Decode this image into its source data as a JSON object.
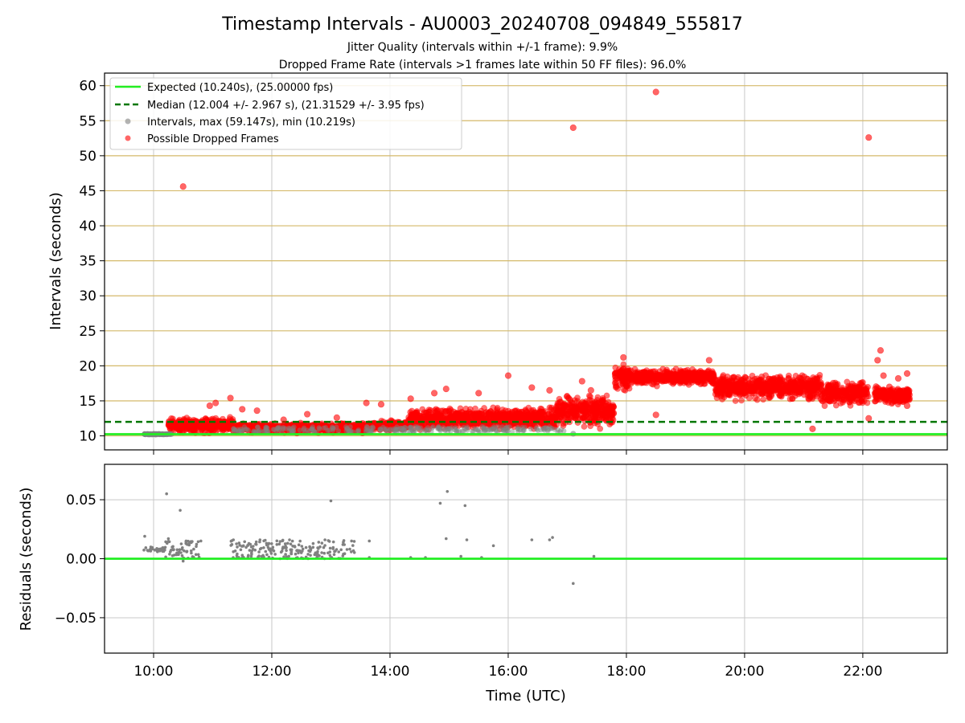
{
  "chart_data": [
    {
      "type": "scatter",
      "title": "Timestamp Intervals - AU0003_20240708_094849_555817",
      "subtitle_lines": [
        "Jitter Quality (intervals within +/-1 frame): 9.9%",
        "Dropped Frame Rate (intervals >1 frames late within 50 FF files): 96.0%"
      ],
      "xlabel": "",
      "ylabel": "Intervals (seconds)",
      "xlim_hours": [
        9.17,
        23.43
      ],
      "ylim": [
        8,
        61.8
      ],
      "yticks": [
        10,
        15,
        20,
        25,
        30,
        35,
        40,
        45,
        50,
        55,
        60
      ],
      "xticks": [
        "10:00",
        "12:00",
        "14:00",
        "16:00",
        "18:00",
        "20:00",
        "22:00"
      ],
      "grid": true,
      "legend_position": "upper-left",
      "colors": {
        "expected": "#22ee22",
        "median": "#007700",
        "intervals": "#808080",
        "dropped": "#ff0000",
        "hgrid": "#d4b96a",
        "vgrid": "#c8c8c8"
      },
      "series": [
        {
          "name": "Expected (10.240s), (25.00000 fps)",
          "kind": "hline",
          "y": 10.24
        },
        {
          "name": "Median (12.004 +/- 2.967 s), (21.31529 +/- 3.95 fps)",
          "kind": "hline",
          "y": 12.004
        },
        {
          "name": "Intervals, max (59.147s), min (10.219s)",
          "kind": "points",
          "points": [
            [
              9.85,
              10.25
            ],
            [
              9.9,
              10.25
            ],
            [
              9.95,
              10.26
            ],
            [
              10.0,
              10.25
            ],
            [
              10.05,
              10.24
            ],
            [
              10.1,
              10.25
            ],
            [
              10.15,
              10.26
            ],
            [
              10.2,
              10.24
            ],
            [
              10.3,
              10.25
            ],
            [
              13.6,
              10.6
            ],
            [
              14.1,
              10.5
            ],
            [
              14.6,
              10.8
            ],
            [
              15.1,
              10.9
            ],
            [
              15.6,
              10.8
            ],
            [
              16.2,
              10.9
            ],
            [
              16.6,
              11.0
            ],
            [
              17.1,
              10.3
            ]
          ]
        },
        {
          "name": "Possible Dropped Frames",
          "kind": "points",
          "points": [
            [
              10.5,
              45.6
            ],
            [
              17.1,
              54.0
            ],
            [
              18.5,
              59.1
            ],
            [
              22.1,
              52.6
            ],
            [
              10.95,
              14.3
            ],
            [
              11.05,
              14.7
            ],
            [
              11.3,
              15.4
            ],
            [
              11.5,
              13.8
            ],
            [
              11.75,
              13.6
            ],
            [
              12.2,
              12.3
            ],
            [
              12.6,
              13.1
            ],
            [
              13.1,
              12.6
            ],
            [
              13.6,
              14.7
            ],
            [
              13.85,
              14.5
            ],
            [
              14.35,
              15.3
            ],
            [
              14.75,
              16.1
            ],
            [
              14.95,
              16.7
            ],
            [
              15.5,
              16.1
            ],
            [
              16.0,
              18.6
            ],
            [
              16.4,
              16.9
            ],
            [
              16.7,
              16.5
            ],
            [
              17.25,
              17.8
            ],
            [
              17.4,
              16.5
            ],
            [
              17.6,
              14.9
            ],
            [
              17.95,
              21.2
            ],
            [
              18.5,
              13.0
            ],
            [
              19.4,
              20.8
            ],
            [
              21.15,
              11.0
            ],
            [
              22.1,
              12.5
            ],
            [
              22.25,
              20.8
            ],
            [
              22.3,
              22.2
            ],
            [
              22.35,
              18.6
            ],
            [
              22.6,
              18.2
            ],
            [
              22.7,
              15.5
            ],
            [
              22.75,
              14.3
            ],
            [
              22.75,
              18.9
            ],
            [
              22.45,
              17.0
            ]
          ]
        }
      ],
      "dense_bands": [
        {
          "x": [
            10.25,
            11.35
          ],
          "y": [
            10.2,
            12.9
          ]
        },
        {
          "x": [
            11.35,
            13.6
          ],
          "y": [
            10.3,
            12.0
          ]
        },
        {
          "x": [
            13.6,
            14.3
          ],
          "y": [
            10.6,
            12.3
          ]
        },
        {
          "x": [
            14.3,
            16.8
          ],
          "y": [
            10.6,
            14.3
          ]
        },
        {
          "x": [
            16.8,
            17.8
          ],
          "y": [
            10.6,
            16.5
          ]
        },
        {
          "x": [
            17.8,
            18.1
          ],
          "y": [
            16.0,
            20.8
          ]
        },
        {
          "x": [
            18.1,
            19.5
          ],
          "y": [
            17.0,
            19.8
          ]
        },
        {
          "x": [
            19.5,
            21.3
          ],
          "y": [
            14.8,
            19.0
          ]
        },
        {
          "x": [
            21.3,
            22.1
          ],
          "y": [
            14.0,
            18.3
          ]
        },
        {
          "x": [
            22.2,
            22.8
          ],
          "y": [
            14.0,
            17.5
          ]
        }
      ]
    },
    {
      "type": "scatter",
      "xlabel": "Time (UTC)",
      "ylabel": "Residuals (seconds)",
      "xlim_hours": [
        9.17,
        23.43
      ],
      "ylim": [
        -0.08,
        0.08
      ],
      "yticks": [
        0.05,
        0.0,
        -0.05
      ],
      "ytick_labels": [
        "0.05",
        "0.00",
        "−0.05"
      ],
      "xticks": [
        "10:00",
        "12:00",
        "14:00",
        "16:00",
        "18:00",
        "20:00",
        "22:00"
      ],
      "grid": true,
      "colors": {
        "zero": "#22ee22",
        "residuals": "#808080",
        "grid": "#c8c8c8"
      },
      "series": [
        {
          "name": "Residuals",
          "kind": "points",
          "points": [
            [
              10.22,
              0.055
            ],
            [
              10.45,
              0.041
            ],
            [
              13.0,
              0.049
            ],
            [
              14.85,
              0.047
            ],
            [
              14.97,
              0.057
            ],
            [
              15.27,
              0.045
            ],
            [
              9.85,
              0.019
            ],
            [
              10.25,
              0.017
            ],
            [
              10.55,
              0.015
            ],
            [
              10.8,
              0.015
            ],
            [
              11.35,
              0.016
            ],
            [
              11.8,
              0.016
            ],
            [
              12.3,
              0.016
            ],
            [
              12.9,
              0.016
            ],
            [
              13.35,
              0.015
            ],
            [
              13.65,
              0.015
            ],
            [
              14.95,
              0.017
            ],
            [
              15.3,
              0.016
            ],
            [
              15.75,
              0.011
            ],
            [
              16.4,
              0.016
            ],
            [
              16.7,
              0.016
            ],
            [
              16.75,
              0.018
            ],
            [
              17.1,
              -0.021
            ],
            [
              17.45,
              0.002
            ],
            [
              10.5,
              -0.002
            ],
            [
              13.65,
              0.001
            ],
            [
              14.35,
              0.001
            ],
            [
              14.6,
              0.001
            ],
            [
              15.55,
              0.001
            ],
            [
              15.2,
              0.002
            ],
            [
              10.4,
              0.005
            ]
          ]
        }
      ],
      "dense_bands": [
        {
          "x": [
            9.83,
            10.2
          ],
          "y": [
            0.006,
            0.01
          ]
        },
        {
          "x": [
            10.2,
            10.8
          ],
          "y": [
            0.0,
            0.015
          ]
        },
        {
          "x": [
            11.3,
            13.4
          ],
          "y": [
            0.0,
            0.016
          ]
        }
      ]
    }
  ]
}
